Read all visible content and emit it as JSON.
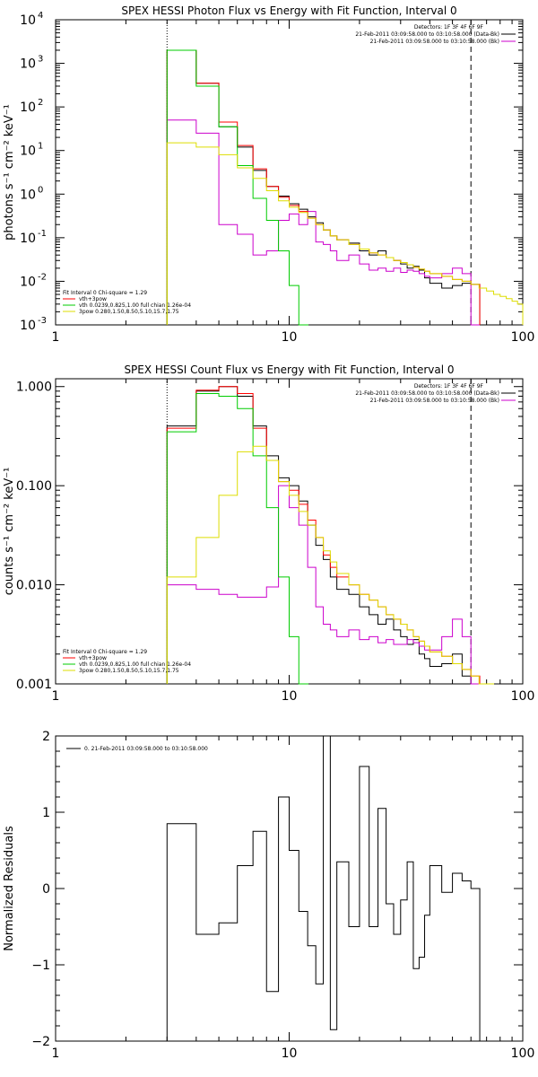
{
  "chart_data": [
    {
      "type": "line",
      "title": "SPEX HESSI Photon Flux vs Energy with Fit Function, Interval 0",
      "ylabel": "photons s⁻¹ cm⁻² keV⁻¹",
      "xlabel": "",
      "xscale": "log",
      "yscale": "log",
      "xlim": [
        1,
        100
      ],
      "ylim": [
        0.001,
        10000
      ],
      "xticks": [
        {
          "v": 1,
          "label": "1"
        },
        {
          "v": 10,
          "label": "10"
        },
        {
          "v": 100,
          "label": "100"
        }
      ],
      "yticks_label_base": "10",
      "yticks_exp": [
        -3,
        -2,
        -1,
        0,
        1,
        2,
        3,
        4
      ],
      "vlines": [
        {
          "x": 3,
          "style": "dotted"
        },
        {
          "x": 60,
          "style": "dashed"
        }
      ],
      "legend_top": {
        "header": "Detectors: 1F 3F 4F 6F 9F",
        "lines": [
          "21-Feb-2011 03:09:58.000 to 03:10:58.000 (Data-Bk)",
          "21-Feb-2011 03:09:58.000 to 03:10:58.000 (Bk)"
        ]
      },
      "legend_bottom": {
        "header": "Fit Interval 0   Chi-square = 1.29",
        "lines": [
          "vth+3pow",
          "vth 0.0239,0.825,1.00  full chian 1.26e-04",
          "3pow 0.280,1.50,8.50,5.10,15.7,1.75"
        ]
      },
      "series": [
        {
          "name": "21-Feb-2011 03:09:58.000 to 03:10:58.000 (Data-Bk)",
          "color": "#000000",
          "x": [
            3,
            4,
            5,
            6,
            7,
            8,
            9,
            10,
            11,
            12,
            13,
            14,
            15,
            16,
            18,
            20,
            22,
            24,
            26,
            28,
            30,
            32,
            34,
            36,
            38,
            40,
            45,
            50,
            55,
            60
          ],
          "y": [
            2000,
            350,
            35,
            12,
            3.5,
            1.5,
            0.9,
            0.6,
            0.45,
            0.3,
            0.22,
            0.15,
            0.11,
            0.09,
            0.075,
            0.05,
            0.04,
            0.05,
            0.035,
            0.03,
            0.025,
            0.02,
            0.022,
            0.018,
            0.012,
            0.009,
            0.007,
            0.008,
            0.009,
            0.0085
          ]
        },
        {
          "name": "21-Feb-2011 03:09:58.000 to 03:10:58.000 (Bk)",
          "color": "#cc00cc",
          "x": [
            3,
            4,
            5,
            6,
            7,
            8,
            9,
            10,
            11,
            12,
            13,
            14,
            15,
            16,
            18,
            20,
            22,
            24,
            26,
            28,
            30,
            32,
            34,
            36,
            38,
            40,
            45,
            50,
            55,
            60
          ],
          "y": [
            50,
            25,
            0.2,
            0.12,
            0.04,
            0.05,
            0.25,
            0.35,
            0.2,
            0.4,
            0.08,
            0.07,
            0.05,
            0.03,
            0.04,
            0.025,
            0.018,
            0.02,
            0.017,
            0.02,
            0.016,
            0.018,
            0.017,
            0.015,
            0.013,
            0.012,
            0.015,
            0.02,
            0.015,
            0.001
          ]
        },
        {
          "name": "vth+3pow",
          "color": "#ff0000",
          "x": [
            3,
            4,
            5,
            6,
            7,
            8,
            9,
            10,
            11,
            12,
            13,
            14,
            15,
            16,
            18,
            20,
            22,
            24,
            26,
            28,
            30,
            32,
            34,
            36,
            38,
            40,
            45,
            50,
            55,
            60
          ],
          "y": [
            2000,
            350,
            45,
            13,
            3.8,
            1.5,
            0.85,
            0.55,
            0.4,
            0.28,
            0.2,
            0.15,
            0.11,
            0.09,
            0.07,
            0.055,
            0.045,
            0.04,
            0.035,
            0.03,
            0.027,
            0.024,
            0.021,
            0.019,
            0.017,
            0.015,
            0.013,
            0.011,
            0.01,
            0.0085
          ]
        },
        {
          "name": "vth 0.0239,0.825,1.00  full chian 1.26e-04",
          "color": "#00cc00",
          "x": [
            3,
            4,
            5,
            6,
            7,
            8,
            9,
            10,
            11
          ],
          "y": [
            2000,
            300,
            35,
            4.5,
            0.8,
            0.25,
            0.05,
            0.008,
            0.001
          ]
        },
        {
          "name": "3pow 0.280,1.50,8.50,5.10,15.7,1.75",
          "color": "#dddd00",
          "x": [
            3,
            4,
            5,
            6,
            7,
            8,
            9,
            10,
            11,
            12,
            13,
            14,
            15,
            16,
            18,
            20,
            22,
            24,
            26,
            28,
            30,
            32,
            34,
            36,
            38,
            40,
            45,
            50,
            55,
            60,
            65,
            70,
            75,
            80,
            85,
            90,
            95,
            100
          ],
          "y": [
            15,
            12,
            8,
            4,
            2.3,
            1.2,
            0.7,
            0.5,
            0.38,
            0.28,
            0.2,
            0.15,
            0.11,
            0.09,
            0.07,
            0.055,
            0.045,
            0.04,
            0.035,
            0.03,
            0.027,
            0.024,
            0.021,
            0.019,
            0.017,
            0.015,
            0.013,
            0.011,
            0.01,
            0.0085,
            0.007,
            0.006,
            0.005,
            0.0045,
            0.004,
            0.0035,
            0.003,
            0.0025
          ]
        }
      ]
    },
    {
      "type": "line",
      "title": "SPEX HESSI Count Flux vs Energy with Fit Function, Interval 0",
      "ylabel": "counts s⁻¹ cm⁻² keV⁻¹",
      "xlabel": "",
      "xscale": "log",
      "yscale": "log",
      "xlim": [
        1,
        100
      ],
      "ylim": [
        0.001,
        1.2
      ],
      "xticks": [
        {
          "v": 1,
          "label": "1"
        },
        {
          "v": 10,
          "label": "10"
        },
        {
          "v": 100,
          "label": "100"
        }
      ],
      "yticks": [
        {
          "v": 0.001,
          "label": "0.001"
        },
        {
          "v": 0.01,
          "label": "0.010"
        },
        {
          "v": 0.1,
          "label": "0.100"
        },
        {
          "v": 1,
          "label": "1.000"
        }
      ],
      "vlines": [
        {
          "x": 3,
          "style": "dotted"
        },
        {
          "x": 60,
          "style": "dashed"
        }
      ],
      "legend_top": {
        "header": "Detectors: 1F 3F 4F 6F 9F",
        "lines": [
          "21-Feb-2011 03:09:58.000 to 03:10:58.000 (Data-Bk)",
          "21-Feb-2011 03:09:58.000 to 03:10:58.000 (Bk)"
        ]
      },
      "legend_bottom": {
        "header": "Fit Interval 0   Chi-square = 1.29",
        "lines": [
          "vth+3pow",
          "vth 0.0239,0.825,1.00  full chian 1.26e-04",
          "3pow 0.280,1.50,8.50,5.10,15.7,1.75"
        ]
      },
      "series": [
        {
          "name": "21-Feb-2011 03:09:58.000 to 03:10:58.000 (Data-Bk)",
          "color": "#000000",
          "x": [
            3,
            4,
            5,
            6,
            7,
            8,
            9,
            10,
            11,
            12,
            13,
            14,
            15,
            16,
            18,
            20,
            22,
            24,
            26,
            28,
            30,
            32,
            34,
            36,
            38,
            40,
            45,
            50,
            55,
            60
          ],
          "y": [
            0.4,
            0.9,
            1.0,
            0.8,
            0.4,
            0.2,
            0.12,
            0.1,
            0.07,
            0.04,
            0.025,
            0.018,
            0.012,
            0.009,
            0.008,
            0.006,
            0.005,
            0.004,
            0.0045,
            0.0035,
            0.003,
            0.0025,
            0.0028,
            0.002,
            0.0018,
            0.0015,
            0.0016,
            0.002,
            0.0012,
            0.001
          ]
        },
        {
          "name": "21-Feb-2011 03:09:58.000 to 03:10:58.000 (Bk)",
          "color": "#cc00cc",
          "x": [
            3,
            4,
            5,
            6,
            7,
            8,
            9,
            10,
            11,
            12,
            13,
            14,
            15,
            16,
            18,
            20,
            22,
            24,
            26,
            28,
            30,
            32,
            34,
            36,
            38,
            40,
            45,
            50,
            55,
            60
          ],
          "y": [
            0.01,
            0.009,
            0.008,
            0.0075,
            0.0075,
            0.0095,
            0.1,
            0.06,
            0.04,
            0.015,
            0.006,
            0.004,
            0.0035,
            0.003,
            0.0035,
            0.0028,
            0.003,
            0.0026,
            0.0028,
            0.0025,
            0.0025,
            0.0028,
            0.0026,
            0.0024,
            0.0022,
            0.0022,
            0.003,
            0.0045,
            0.003,
            0.001
          ]
        },
        {
          "name": "vth+3pow",
          "color": "#ff0000",
          "x": [
            3,
            4,
            5,
            6,
            7,
            8,
            9,
            10,
            11,
            12,
            13,
            14,
            15,
            16,
            18,
            20,
            22,
            24,
            26,
            28,
            30,
            32,
            34,
            36,
            38,
            40,
            45,
            50,
            55,
            60
          ],
          "y": [
            0.38,
            0.92,
            1.0,
            0.85,
            0.38,
            0.18,
            0.11,
            0.09,
            0.065,
            0.045,
            0.03,
            0.02,
            0.015,
            0.012,
            0.01,
            0.008,
            0.007,
            0.006,
            0.005,
            0.0045,
            0.004,
            0.0035,
            0.003,
            0.0027,
            0.0024,
            0.0021,
            0.0019,
            0.0016,
            0.0014,
            0.0012
          ]
        },
        {
          "name": "vth 0.0239,0.825,1.00  full chian 1.26e-04",
          "color": "#00cc00",
          "x": [
            3,
            4,
            5,
            6,
            7,
            8,
            9,
            10,
            11
          ],
          "y": [
            0.35,
            0.85,
            0.8,
            0.6,
            0.2,
            0.06,
            0.012,
            0.003,
            0.001
          ]
        },
        {
          "name": "3pow 0.280,1.50,8.50,5.10,15.7,1.75",
          "color": "#dddd00",
          "x": [
            3,
            4,
            5,
            6,
            7,
            8,
            9,
            10,
            11,
            12,
            13,
            14,
            15,
            16,
            18,
            20,
            22,
            24,
            26,
            28,
            30,
            32,
            34,
            36,
            38,
            40,
            45,
            50,
            55,
            60,
            65,
            70
          ],
          "y": [
            0.012,
            0.03,
            0.08,
            0.22,
            0.25,
            0.18,
            0.11,
            0.08,
            0.055,
            0.04,
            0.03,
            0.022,
            0.017,
            0.013,
            0.01,
            0.008,
            0.007,
            0.006,
            0.005,
            0.0045,
            0.004,
            0.0035,
            0.003,
            0.0027,
            0.0024,
            0.0021,
            0.0019,
            0.0016,
            0.0014,
            0.0012,
            0.001,
            0.001
          ]
        }
      ]
    },
    {
      "type": "line",
      "title": "",
      "ylabel": "Normalized Residuals",
      "xlabel": "",
      "xscale": "log",
      "yscale": "linear",
      "xlim": [
        1,
        100
      ],
      "ylim": [
        -2,
        2
      ],
      "xticks": [
        {
          "v": 1,
          "label": "1"
        },
        {
          "v": 10,
          "label": "10"
        },
        {
          "v": 100,
          "label": "100"
        }
      ],
      "yticks": [
        {
          "v": -2,
          "label": "−2"
        },
        {
          "v": -1,
          "label": "−1"
        },
        {
          "v": 0,
          "label": "0"
        },
        {
          "v": 1,
          "label": "1"
        },
        {
          "v": 2,
          "label": "2"
        }
      ],
      "legend_top": {
        "header": "",
        "lines": [
          "0. 21-Feb-2011 03:09:58.000 to 03:10:58.000"
        ]
      },
      "series": [
        {
          "name": "0. 21-Feb-2011 03:09:58.000 to 03:10:58.000",
          "color": "#000000",
          "x": [
            3,
            4,
            5,
            6,
            7,
            8,
            9,
            10,
            11,
            12,
            13,
            14,
            15,
            16,
            18,
            20,
            22,
            24,
            26,
            28,
            30,
            32,
            34,
            36,
            38,
            40,
            45,
            50,
            55,
            60
          ],
          "y": [
            0.85,
            -0.6,
            -0.45,
            0.3,
            0.75,
            -1.35,
            1.2,
            0.5,
            -0.3,
            -0.75,
            -1.25,
            2.0,
            -1.85,
            0.35,
            -0.5,
            1.6,
            -0.5,
            1.05,
            -0.2,
            -0.6,
            -0.15,
            0.35,
            -1.05,
            -0.9,
            -0.35,
            0.3,
            -0.05,
            0.2,
            0.1,
            0.0
          ]
        }
      ]
    }
  ]
}
